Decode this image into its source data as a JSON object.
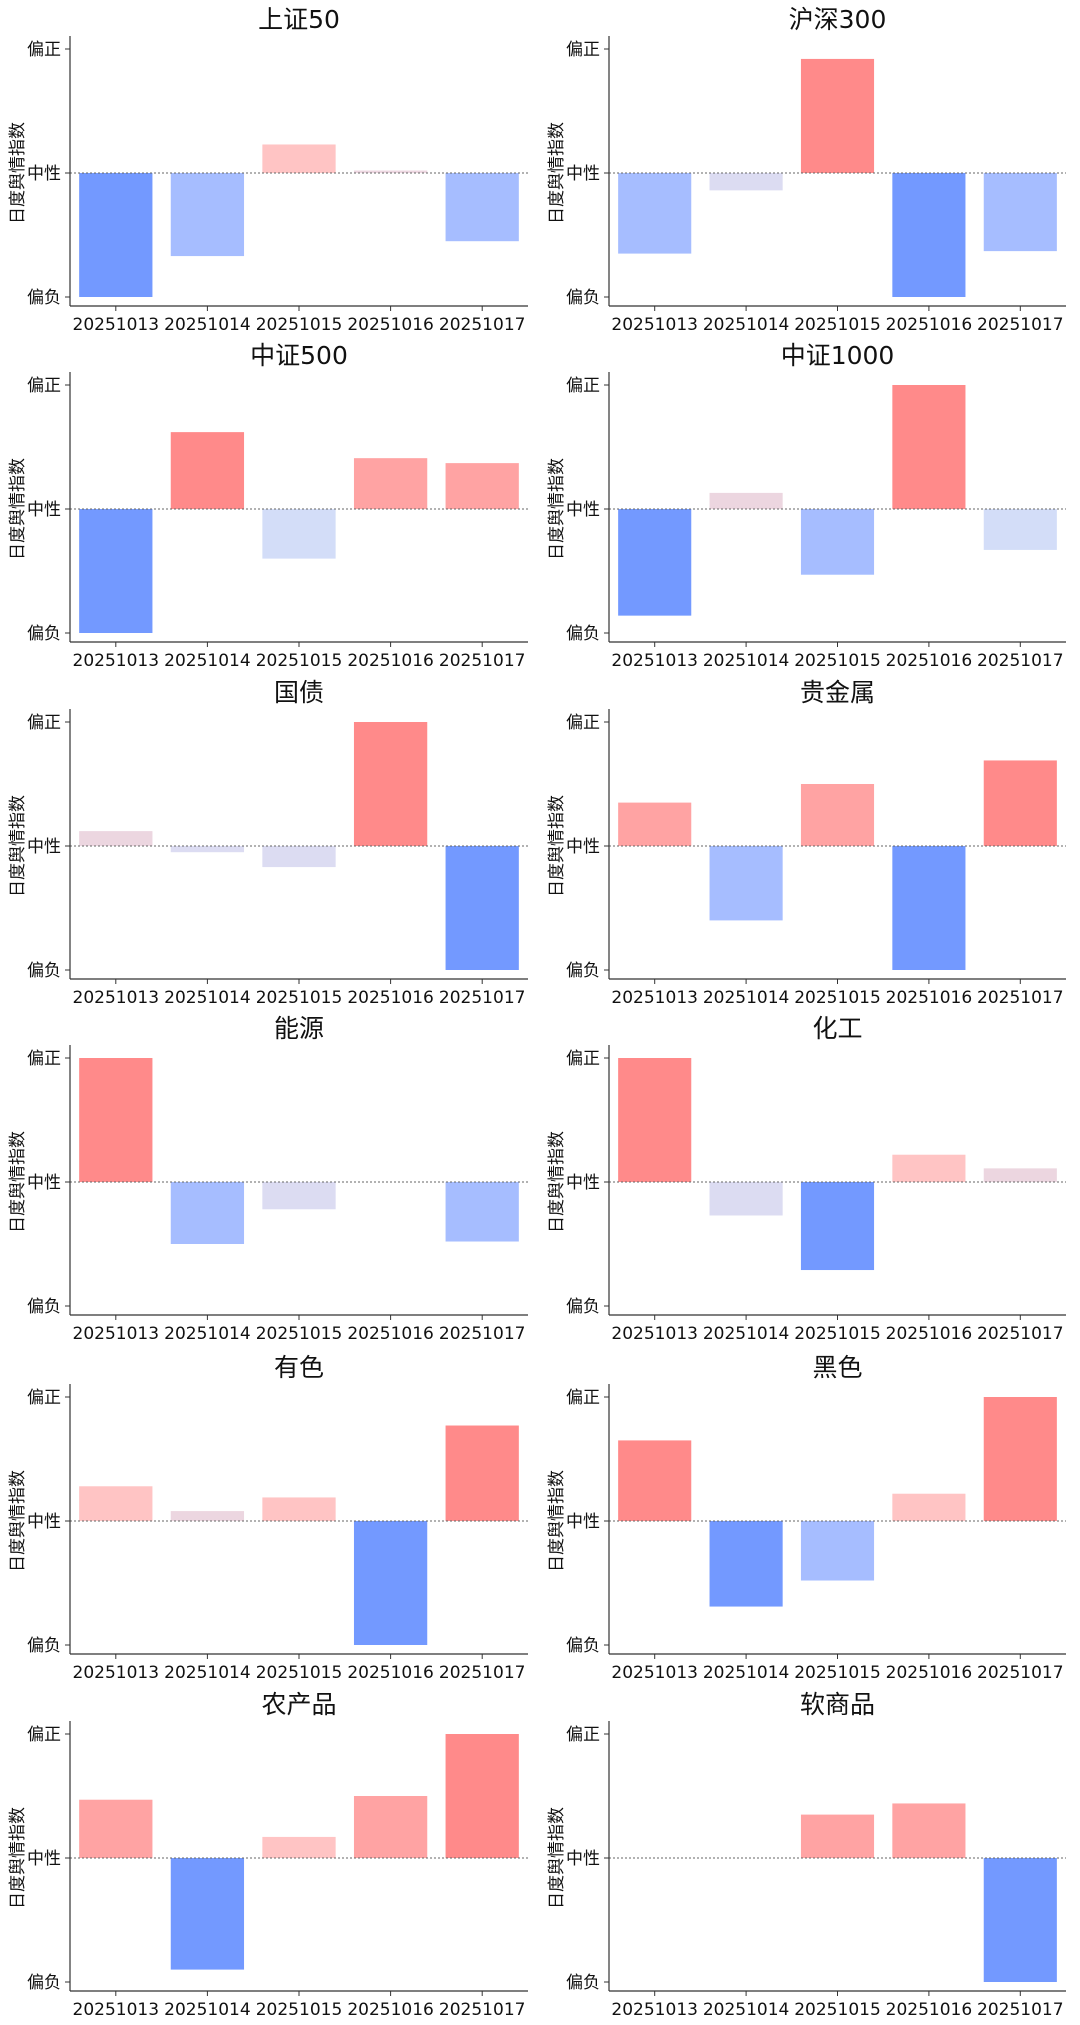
{
  "colors": {
    "strong_positive": "#ff8a8a",
    "mid_positive": "#ffa3a3",
    "light_positive": "#ffc4c4",
    "neutral_pink": "#ecd6e0",
    "neutral_lavender": "#dcdcf2",
    "light_negative": "#d3ddf8",
    "mid_negative": "#a6bdff",
    "strong_negative": "#7399ff"
  },
  "chart_data": [
    {
      "type": "bar",
      "title": "上证50",
      "ylabel": "日度舆情指数",
      "yticklabels": [
        "偏负",
        "中性",
        "偏正"
      ],
      "ylim": [
        -1,
        1
      ],
      "categories": [
        "20251013",
        "20251014",
        "20251015",
        "20251016",
        "20251017"
      ],
      "values": [
        -1.0,
        -0.67,
        0.23,
        0.02,
        -0.55
      ]
    },
    {
      "type": "bar",
      "title": "沪深300",
      "ylabel": "日度舆情指数",
      "yticklabels": [
        "偏负",
        "中性",
        "偏正"
      ],
      "ylim": [
        -1,
        1
      ],
      "categories": [
        "20251013",
        "20251014",
        "20251015",
        "20251016",
        "20251017"
      ],
      "values": [
        -0.65,
        -0.14,
        0.92,
        -1.0,
        -0.63
      ]
    },
    {
      "type": "bar",
      "title": "中证500",
      "ylabel": "日度舆情指数",
      "yticklabels": [
        "偏负",
        "中性",
        "偏正"
      ],
      "ylim": [
        -1,
        1
      ],
      "categories": [
        "20251013",
        "20251014",
        "20251015",
        "20251016",
        "20251017"
      ],
      "values": [
        -1.0,
        0.62,
        -0.4,
        0.41,
        0.37
      ]
    },
    {
      "type": "bar",
      "title": "中证1000",
      "ylabel": "日度舆情指数",
      "yticklabels": [
        "偏负",
        "中性",
        "偏正"
      ],
      "ylim": [
        -1,
        1
      ],
      "categories": [
        "20251013",
        "20251014",
        "20251015",
        "20251016",
        "20251017"
      ],
      "values": [
        -0.86,
        0.13,
        -0.53,
        1.0,
        -0.33
      ]
    },
    {
      "type": "bar",
      "title": "国债",
      "ylabel": "日度舆情指数",
      "yticklabels": [
        "偏负",
        "中性",
        "偏正"
      ],
      "ylim": [
        -1,
        1
      ],
      "categories": [
        "20251013",
        "20251014",
        "20251015",
        "20251016",
        "20251017"
      ],
      "values": [
        0.12,
        -0.05,
        -0.17,
        1.0,
        -1.0
      ]
    },
    {
      "type": "bar",
      "title": "贵金属",
      "ylabel": "日度舆情指数",
      "yticklabels": [
        "偏负",
        "中性",
        "偏正"
      ],
      "ylim": [
        -1,
        1
      ],
      "categories": [
        "20251013",
        "20251014",
        "20251015",
        "20251016",
        "20251017"
      ],
      "values": [
        0.35,
        -0.6,
        0.5,
        -1.0,
        0.69
      ]
    },
    {
      "type": "bar",
      "title": "能源",
      "ylabel": "日度舆情指数",
      "yticklabels": [
        "偏负",
        "中性",
        "偏正"
      ],
      "ylim": [
        -1,
        1
      ],
      "categories": [
        "20251013",
        "20251014",
        "20251015",
        "20251016",
        "20251017"
      ],
      "values": [
        1.0,
        -0.5,
        -0.22,
        0.0,
        -0.48
      ]
    },
    {
      "type": "bar",
      "title": "化工",
      "ylabel": "日度舆情指数",
      "yticklabels": [
        "偏负",
        "中性",
        "偏正"
      ],
      "ylim": [
        -1,
        1
      ],
      "categories": [
        "20251013",
        "20251014",
        "20251015",
        "20251016",
        "20251017"
      ],
      "values": [
        1.0,
        -0.27,
        -0.71,
        0.22,
        0.11
      ]
    },
    {
      "type": "bar",
      "title": "有色",
      "ylabel": "日度舆情指数",
      "yticklabels": [
        "偏负",
        "中性",
        "偏正"
      ],
      "ylim": [
        -1,
        1
      ],
      "categories": [
        "20251013",
        "20251014",
        "20251015",
        "20251016",
        "20251017"
      ],
      "values": [
        0.28,
        0.08,
        0.19,
        -1.0,
        0.77
      ]
    },
    {
      "type": "bar",
      "title": "黑色",
      "ylabel": "日度舆情指数",
      "yticklabels": [
        "偏负",
        "中性",
        "偏正"
      ],
      "ylim": [
        -1,
        1
      ],
      "categories": [
        "20251013",
        "20251014",
        "20251015",
        "20251016",
        "20251017"
      ],
      "values": [
        0.65,
        -0.69,
        -0.48,
        0.22,
        1.0
      ]
    },
    {
      "type": "bar",
      "title": "农产品",
      "ylabel": "日度舆情指数",
      "yticklabels": [
        "偏负",
        "中性",
        "偏正"
      ],
      "ylim": [
        -1,
        1
      ],
      "categories": [
        "20251013",
        "20251014",
        "20251015",
        "20251016",
        "20251017"
      ],
      "values": [
        0.47,
        -0.9,
        0.17,
        0.5,
        1.0
      ]
    },
    {
      "type": "bar",
      "title": "软商品",
      "ylabel": "日度舆情指数",
      "yticklabels": [
        "偏负",
        "中性",
        "偏正"
      ],
      "ylim": [
        -1,
        1
      ],
      "categories": [
        "20251013",
        "20251014",
        "20251015",
        "20251016",
        "20251017"
      ],
      "values": [
        0.0,
        0.0,
        0.35,
        0.44,
        -1.0
      ]
    }
  ]
}
